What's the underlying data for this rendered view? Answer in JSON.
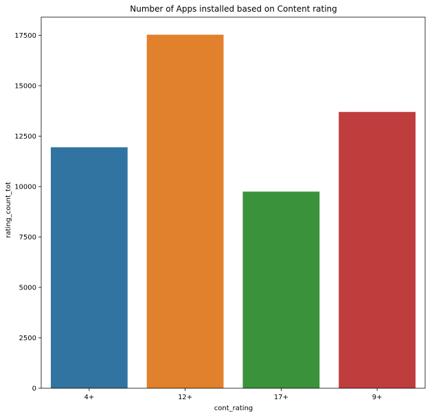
{
  "chart_data": {
    "type": "bar",
    "title": "Number of Apps installed based on Content rating",
    "xlabel": "cont_rating",
    "ylabel": "rating_count_tot",
    "categories": [
      "4+",
      "12+",
      "17+",
      "9+"
    ],
    "values": [
      11950,
      17530,
      9750,
      13700
    ],
    "colors": [
      "#3274a1",
      "#e1812c",
      "#3a923a",
      "#c03d3e"
    ],
    "ylim": [
      0,
      18400
    ],
    "yticks": [
      0,
      2500,
      5000,
      7500,
      10000,
      12500,
      15000,
      17500
    ],
    "ytick_labels": [
      "0",
      "2500",
      "5000",
      "7500",
      "10000",
      "12500",
      "15000",
      "17500"
    ],
    "grid": false,
    "legend": "none"
  }
}
